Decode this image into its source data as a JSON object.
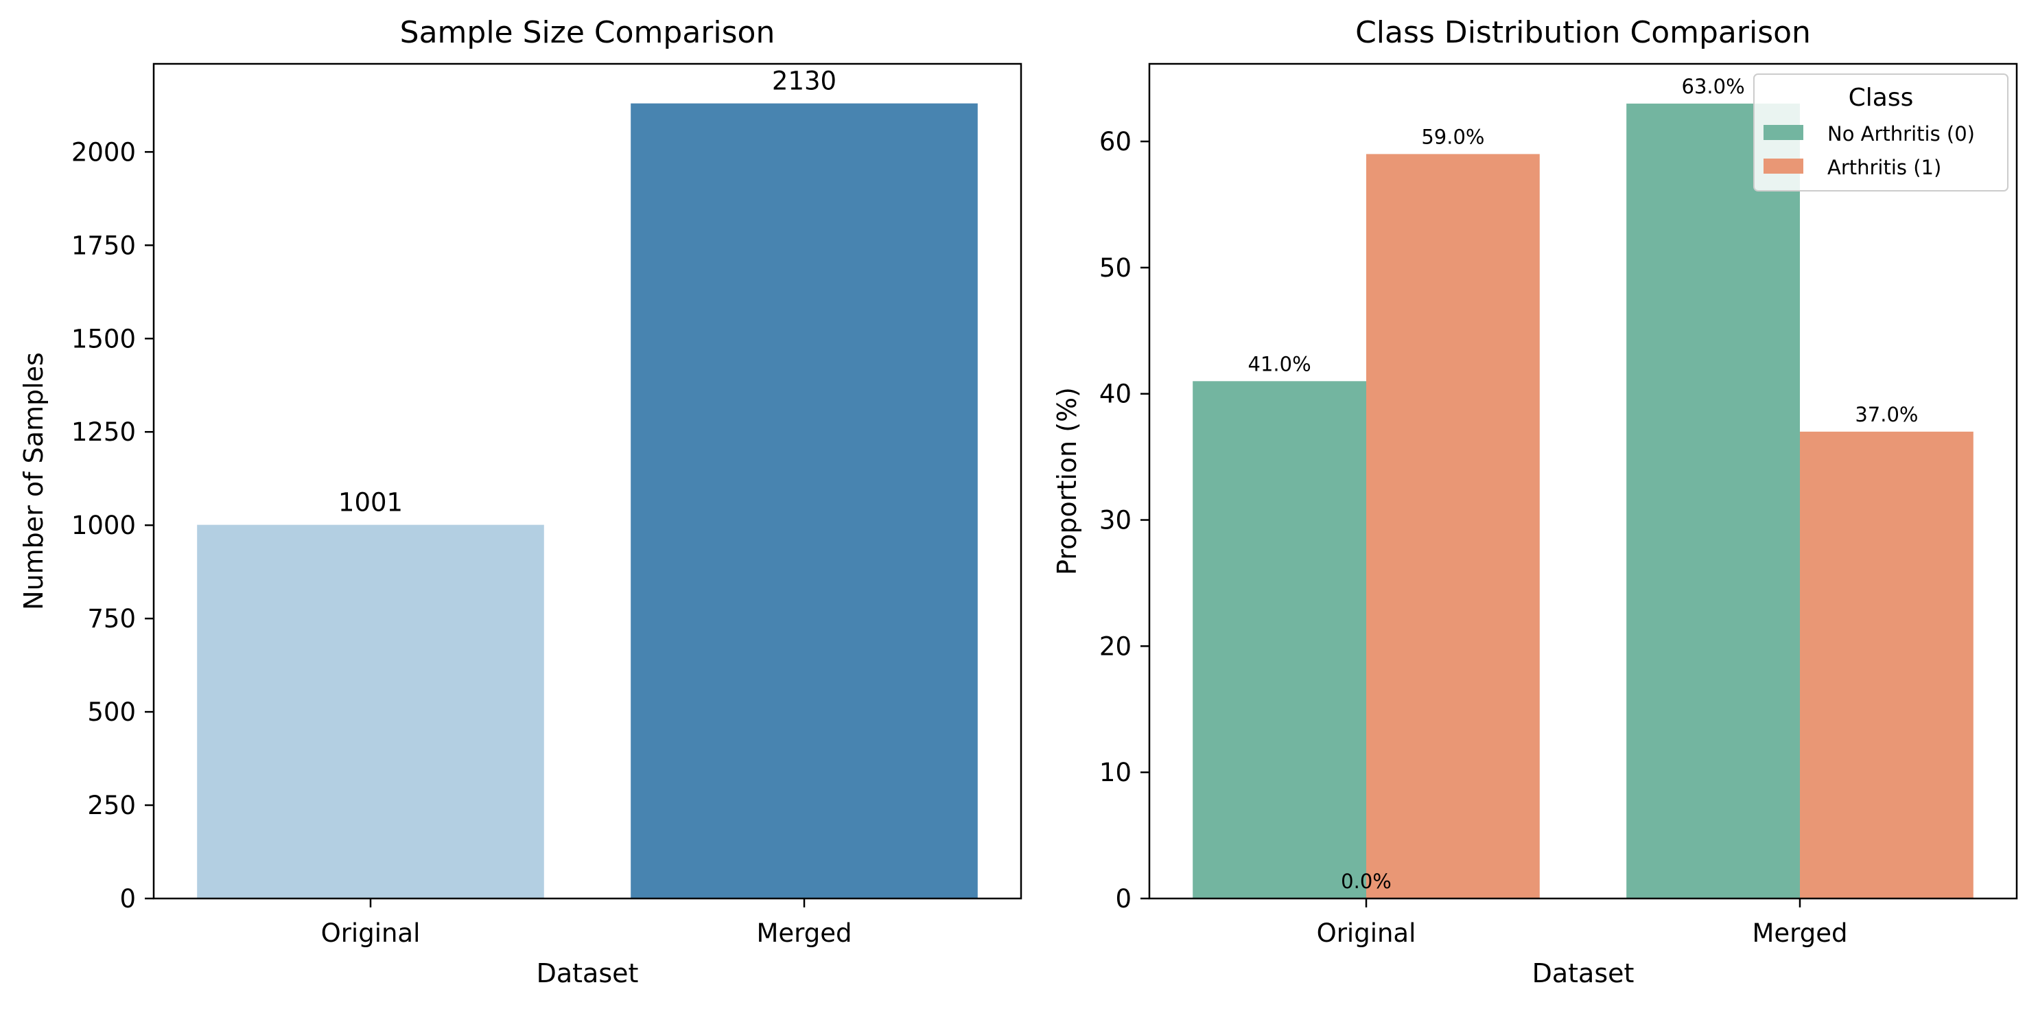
{
  "chart_data": [
    {
      "type": "bar",
      "title": "Sample Size Comparison",
      "xlabel": "Dataset",
      "ylabel": "Number of Samples",
      "categories": [
        "Original",
        "Merged"
      ],
      "values": [
        1001,
        2130
      ],
      "value_labels": [
        "1001",
        "2130"
      ],
      "colors": [
        "#b3cfe2",
        "#4884b0"
      ],
      "ylim": [
        0,
        2236
      ],
      "yticks": [
        0,
        250,
        500,
        750,
        1000,
        1250,
        1500,
        1750,
        2000
      ],
      "ytick_labels": [
        "0",
        "250",
        "500",
        "750",
        "1000",
        "1250",
        "1500",
        "1750",
        "2000"
      ],
      "grid": false
    },
    {
      "type": "bar",
      "title": "Class Distribution Comparison",
      "xlabel": "Dataset",
      "ylabel": "Proportion (%)",
      "categories": [
        "Original",
        "Merged"
      ],
      "series": [
        {
          "name": "No Arthritis (0)",
          "values": [
            41.0,
            63.0
          ],
          "value_labels": [
            "41.0%",
            "63.0%"
          ],
          "color": "#73b5a0"
        },
        {
          "name": "Arthritis (1)",
          "values": [
            59.0,
            37.0
          ],
          "value_labels": [
            "59.0%",
            "37.0%"
          ],
          "color": "#e99775"
        }
      ],
      "extra_labels": [
        {
          "text": "0.0%",
          "category": "Original",
          "y": 0
        }
      ],
      "ylim": [
        0,
        66.15
      ],
      "yticks": [
        0,
        10,
        20,
        30,
        40,
        50,
        60
      ],
      "ytick_labels": [
        "0",
        "10",
        "20",
        "30",
        "40",
        "50",
        "60"
      ],
      "legend": {
        "title": "Class",
        "placement": "top-right"
      },
      "grid": false
    }
  ]
}
